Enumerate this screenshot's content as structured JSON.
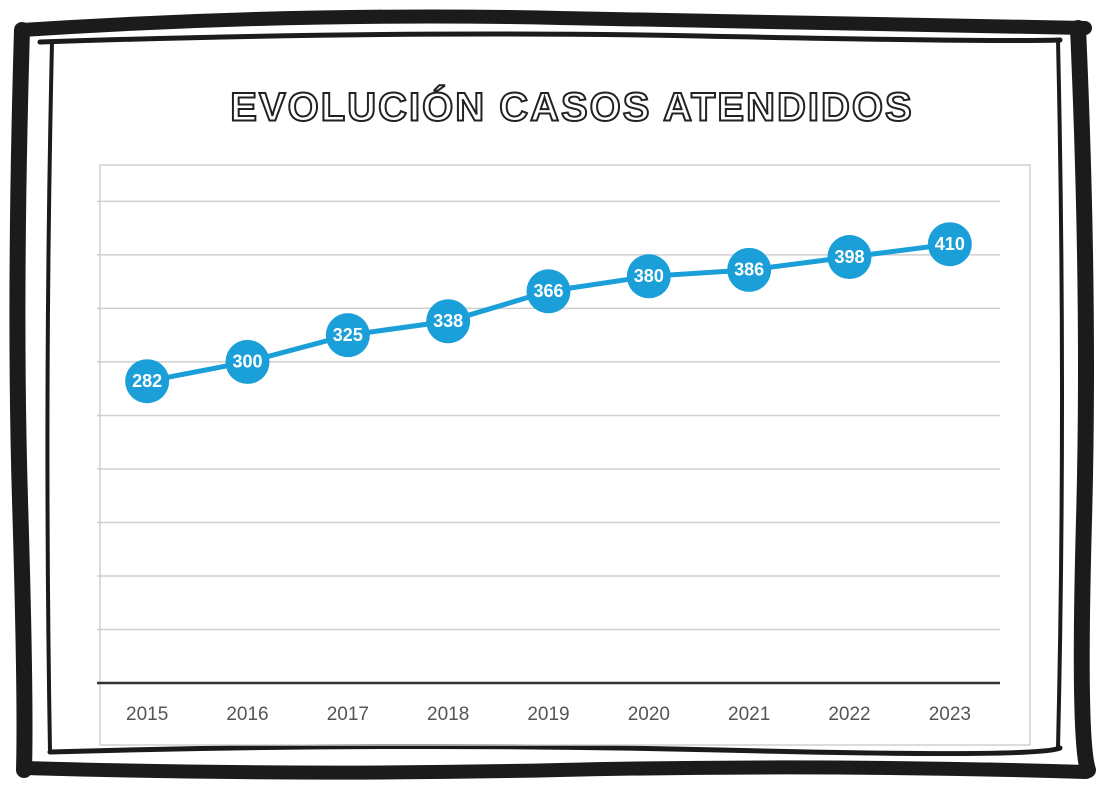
{
  "chart_data": {
    "type": "line",
    "title": "EVOLUCIÓN CASOS ATENDIDOS",
    "categories": [
      "2015",
      "2016",
      "2017",
      "2018",
      "2019",
      "2020",
      "2021",
      "2022",
      "2023"
    ],
    "series": [
      {
        "name": "Casos atendidos",
        "color": "#1a9fd8",
        "values": [
          282,
          300,
          325,
          338,
          366,
          380,
          386,
          398,
          410
        ]
      }
    ],
    "ylim": [
      0,
      484
    ],
    "yticks": [
      0,
      50,
      100,
      150,
      200,
      250,
      300,
      350,
      400,
      450
    ],
    "grid": true
  }
}
